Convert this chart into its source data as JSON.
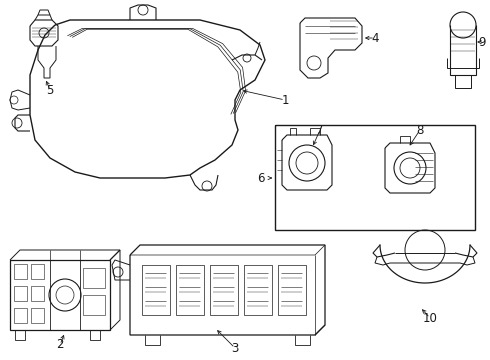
{
  "background_color": "#ffffff",
  "line_color": "#1a1a1a",
  "figsize": [
    4.9,
    3.6
  ],
  "dpi": 100,
  "font_size": 8.5
}
